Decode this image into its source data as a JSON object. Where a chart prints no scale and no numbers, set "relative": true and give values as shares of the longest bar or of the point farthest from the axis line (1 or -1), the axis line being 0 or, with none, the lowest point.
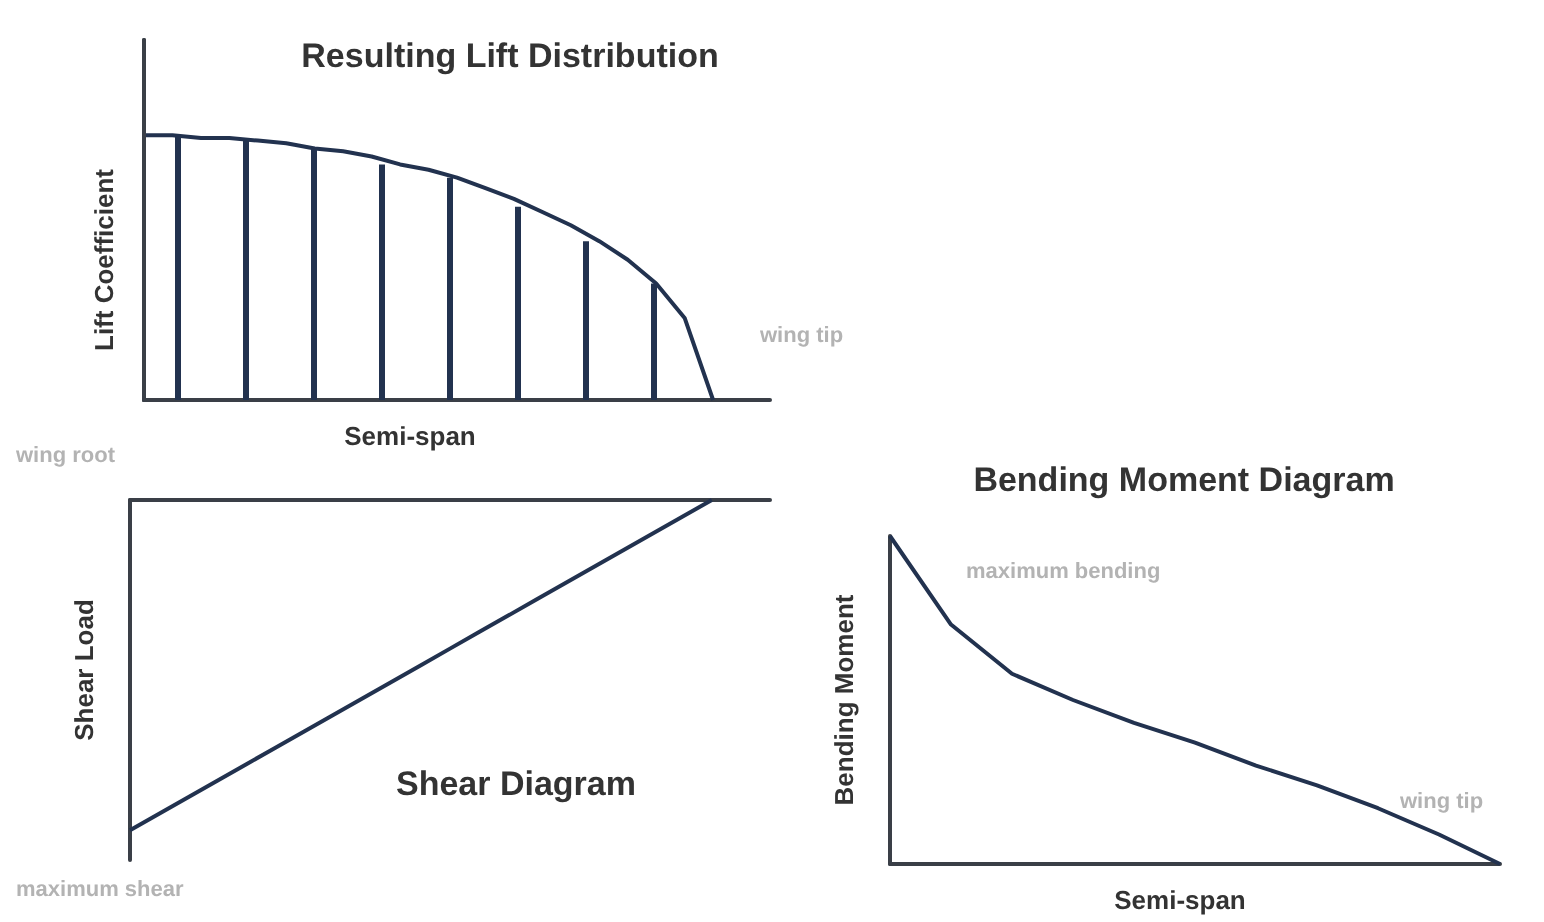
{
  "chart_data": [
    {
      "type": "line",
      "relative": true,
      "title": "Resulting Lift Distribution",
      "xlabel": "Semi-span",
      "ylabel": "Lift Coefficient",
      "marker": "none",
      "annotations": [
        "wing tip",
        "wing root"
      ],
      "categories": [
        null,
        null,
        null,
        null,
        null,
        null,
        null,
        null,
        null,
        null,
        null,
        null,
        null,
        null,
        null,
        null,
        null,
        null,
        null,
        null,
        null,
        null,
        null
      ],
      "series": [
        {
          "color": "#22324f",
          "values": [
            1,
            1,
            0.99,
            0.99,
            0.98,
            0.97,
            0.95,
            0.94,
            0.92,
            0.89,
            0.87,
            0.84,
            0.8,
            0.76,
            0.71,
            0.66,
            0.6,
            0.53,
            0.44,
            0.31,
            0,
            null,
            null
          ]
        }
      ]
    },
    {
      "type": "bar",
      "relative": true,
      "categories": [
        null,
        null,
        null,
        null,
        null,
        null,
        null,
        null
      ],
      "series": [
        {
          "color": "#22324f",
          "values": [
            1,
            0.98,
            0.95,
            0.89,
            0.84,
            0.73,
            0.6,
            0.44
          ]
        }
      ]
    },
    {
      "type": "line",
      "relative": true,
      "title": "Shear Diagram",
      "ylabel": "Shear Load",
      "marker": "none",
      "annotations": [
        "maximum shear"
      ],
      "categories": [
        null,
        null,
        null,
        null,
        null,
        null,
        null,
        null,
        null,
        null,
        null,
        null,
        null,
        null,
        null,
        null,
        null,
        null,
        null,
        null,
        null,
        null,
        null
      ],
      "series": [
        {
          "color": "#22324f",
          "values": [
            -1,
            -0.95,
            -0.9,
            -0.85,
            -0.8,
            -0.75,
            -0.7,
            -0.65,
            -0.6,
            -0.55,
            -0.5,
            -0.45,
            -0.4,
            -0.35,
            -0.3,
            -0.25,
            -0.2,
            -0.15,
            -0.1,
            -0.05,
            0,
            null,
            null
          ]
        }
      ]
    },
    {
      "type": "line",
      "relative": true,
      "title": "Bending Moment Diagram",
      "xlabel": "Semi-span",
      "ylabel": "Bending Moment",
      "marker": "none",
      "annotations": [
        "maximum bending",
        "wing tip"
      ],
      "categories": [
        null,
        null,
        null,
        null,
        null,
        null,
        null,
        null,
        null,
        null,
        null
      ],
      "series": [
        {
          "color": "#22324f",
          "values": [
            1,
            0.73,
            0.58,
            0.5,
            0.43,
            0.37,
            0.3,
            0.24,
            0.17,
            0.09,
            0
          ]
        }
      ]
    }
  ]
}
